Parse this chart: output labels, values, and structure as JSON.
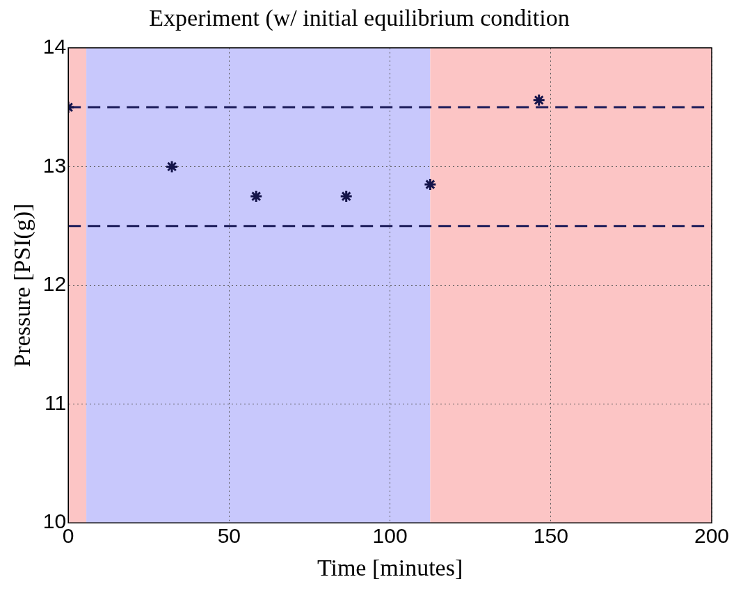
{
  "chart_data": {
    "type": "scatter",
    "title": "Experiment (w/ initial equilibrium condition",
    "xlabel": "Time [minutes]",
    "ylabel": "Pressure [PSI(g)]",
    "series": [
      {
        "color": "#14144a",
        "x": [
          0,
          32.2,
          58.4,
          86.4,
          112.5,
          146.3
        ],
        "values": [
          13.5,
          13.0,
          12.75,
          12.75,
          12.85,
          13.56
        ]
      }
    ],
    "xlim": [
      0,
      200
    ],
    "xticks": [
      0,
      50,
      100,
      150,
      200
    ],
    "ylim": [
      10,
      14
    ],
    "yticks": [
      10,
      11,
      12,
      13,
      14
    ],
    "bands": [
      {
        "axis": "x",
        "from": 0,
        "to": 5.6,
        "color": "#fcc5c5"
      },
      {
        "axis": "x",
        "from": 5.6,
        "to": 112.5,
        "color": "#c8c8fc"
      },
      {
        "axis": "x",
        "from": 112.5,
        "to": 200,
        "color": "#fcc5c5"
      }
    ],
    "ref_lines": [
      {
        "axis": "y",
        "value": 13.5,
        "color": "#1c1c5a",
        "line_style": "dashed"
      },
      {
        "axis": "y",
        "value": 12.5,
        "color": "#1c1c5a",
        "line_style": "dashed"
      }
    ],
    "grid": true,
    "marker": "cross",
    "legend": false
  }
}
